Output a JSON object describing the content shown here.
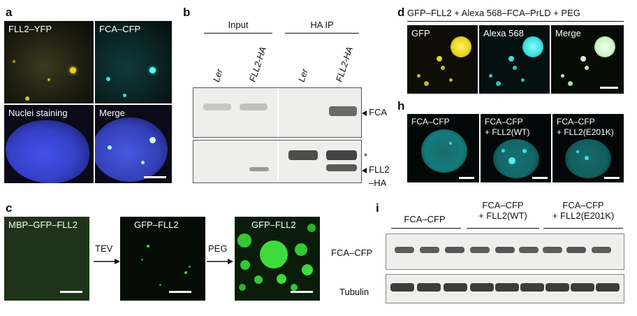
{
  "panel_a": {
    "letter": "a",
    "tiles": [
      "FLL2–YFP",
      "FCA–CFP",
      "Nuclei staining",
      "Merge"
    ]
  },
  "panel_b": {
    "letter": "b",
    "group_input": "Input",
    "group_ip": "HA IP",
    "lanes": [
      "Ler",
      "FLL2-HA",
      "Ler",
      "FLL2-HA"
    ],
    "label_fca": "FCA",
    "label_star": "*",
    "label_fll2_line1": "FLL2",
    "label_fll2_line2": "–HA"
  },
  "panel_c": {
    "letter": "c",
    "tiles": [
      "MBP–GFP–FLL2",
      "GFP–FLL2",
      "GFP–FLL2"
    ],
    "arrow1": "TEV",
    "arrow2": "PEG"
  },
  "panel_d": {
    "letter": "d",
    "title": "GFP–FLL2 + Alexa 568–FCA–PrLD + PEG",
    "tiles": [
      "GFP",
      "Alexa 568",
      "Merge"
    ]
  },
  "panel_h": {
    "letter": "h",
    "tiles": [
      {
        "line1": "FCA–CFP",
        "line2": ""
      },
      {
        "line1": "FCA–CFP",
        "line2": "+ FLL2(WT)"
      },
      {
        "line1": "FCA–CFP",
        "line2": "+ FLL2(E201K)"
      }
    ]
  },
  "panel_i": {
    "letter": "i",
    "groups": [
      {
        "line1": "FCA–CFP",
        "line2": ""
      },
      {
        "line1": "FCA–CFP",
        "line2": "+ FLL2(WT)"
      },
      {
        "line1": "FCA–CFP",
        "line2": "+ FLL2(E201K)"
      }
    ],
    "row_labels": [
      "FCA–CFP",
      "Tubulin"
    ]
  },
  "colors": {
    "yfp": "#e8d21a",
    "cfp": "#38e0e0",
    "nuclei": "#3a44d8",
    "gfp": "#3ddc3d",
    "cyan_bright": "#55f0f0"
  }
}
